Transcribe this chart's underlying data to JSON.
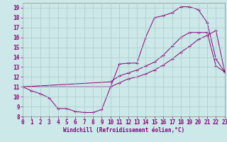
{
  "xlabel": "Windchill (Refroidissement éolien,°C)",
  "bg_color": "#cce8e8",
  "line_color": "#880077",
  "grid_color": "#aacccc",
  "xlim": [
    0,
    23
  ],
  "ylim": [
    8,
    19.5
  ],
  "xticks": [
    0,
    1,
    2,
    3,
    4,
    5,
    6,
    7,
    8,
    9,
    10,
    11,
    12,
    13,
    14,
    15,
    16,
    17,
    18,
    19,
    20,
    21,
    22,
    23
  ],
  "yticks": [
    8,
    9,
    10,
    11,
    12,
    13,
    14,
    15,
    16,
    17,
    18,
    19
  ],
  "curve1_x": [
    0,
    1,
    2,
    3,
    4,
    5,
    6,
    7,
    8,
    9,
    10,
    11,
    12,
    13,
    14,
    15,
    16,
    17,
    18,
    19,
    20,
    21,
    22,
    23
  ],
  "curve1_y": [
    11.0,
    10.6,
    10.3,
    9.9,
    8.8,
    8.8,
    8.5,
    8.4,
    8.4,
    8.7,
    11.0,
    13.3,
    13.4,
    13.4,
    16.0,
    18.0,
    18.2,
    18.5,
    19.1,
    19.1,
    18.8,
    17.5,
    13.8,
    12.5
  ],
  "curve2_x": [
    0,
    10,
    11,
    12,
    13,
    14,
    15,
    16,
    17,
    18,
    19,
    20,
    21,
    22,
    23
  ],
  "curve2_y": [
    11.0,
    11.5,
    12.1,
    12.4,
    12.7,
    13.1,
    13.5,
    14.2,
    15.1,
    16.0,
    16.5,
    16.5,
    16.5,
    13.1,
    12.5
  ],
  "curve3_x": [
    0,
    10,
    11,
    12,
    13,
    14,
    15,
    16,
    17,
    18,
    19,
    20,
    21,
    22,
    23
  ],
  "curve3_y": [
    11.0,
    11.0,
    11.4,
    11.8,
    12.0,
    12.3,
    12.7,
    13.2,
    13.8,
    14.5,
    15.1,
    15.8,
    16.2,
    16.7,
    12.5
  ],
  "tick_fontsize": 5.5,
  "xlabel_fontsize": 5.5
}
